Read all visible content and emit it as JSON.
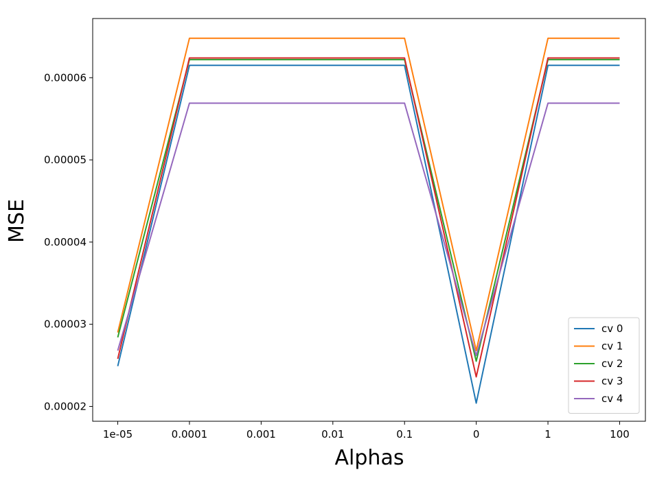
{
  "chart_data": {
    "type": "line",
    "title": "",
    "xlabel": "Alphas",
    "ylabel": "MSE",
    "categories": [
      "1e-05",
      "0.0001",
      "0.001",
      "0.01",
      "0.1",
      "0",
      "1",
      "100"
    ],
    "ylim": [
      1.82e-05,
      6.72e-05
    ],
    "yticks": [
      2e-05,
      3e-05,
      4e-05,
      5e-05,
      6e-05
    ],
    "ytick_labels": [
      "0.00002",
      "0.00003",
      "0.00004",
      "0.00005",
      "0.00006"
    ],
    "grid": false,
    "legend_position": "lower-right",
    "series": [
      {
        "name": "cv 0",
        "color": "#1f77b4",
        "values": [
          2.49e-05,
          6.15e-05,
          6.15e-05,
          6.15e-05,
          6.15e-05,
          2.04e-05,
          6.15e-05,
          6.15e-05
        ]
      },
      {
        "name": "cv 1",
        "color": "#ff7f0e",
        "values": [
          2.9e-05,
          6.48e-05,
          6.48e-05,
          6.48e-05,
          6.48e-05,
          2.68e-05,
          6.48e-05,
          6.48e-05
        ]
      },
      {
        "name": "cv 2",
        "color": "#2ca02c",
        "values": [
          2.84e-05,
          6.22e-05,
          6.22e-05,
          6.22e-05,
          6.22e-05,
          2.55e-05,
          6.22e-05,
          6.22e-05
        ]
      },
      {
        "name": "cv 3",
        "color": "#d62728",
        "values": [
          2.58e-05,
          6.24e-05,
          6.24e-05,
          6.24e-05,
          6.24e-05,
          2.36e-05,
          6.24e-05,
          6.24e-05
        ]
      },
      {
        "name": "cv 4",
        "color": "#9467bd",
        "values": [
          2.68e-05,
          5.69e-05,
          5.69e-05,
          5.69e-05,
          5.69e-05,
          2.62e-05,
          5.69e-05,
          5.69e-05
        ]
      }
    ]
  }
}
